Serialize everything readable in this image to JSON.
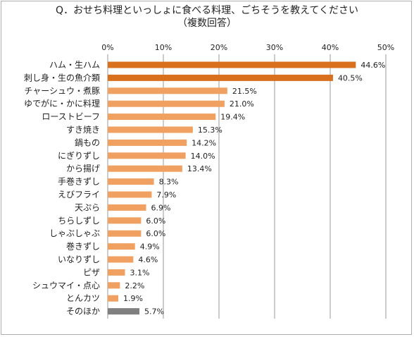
{
  "chart_data": {
    "type": "bar",
    "orientation": "horizontal",
    "title": "Q．おせち料理といっしょに食べる料理、ごちそうを教えてください",
    "subtitle": "（複数回答）",
    "categories": [
      "ハム・生ハム",
      "刺し身・生の魚介類",
      "チャーシュウ・煮豚",
      "ゆでがに・かに料理",
      "ローストビーフ",
      "すき焼き",
      "鍋もの",
      "にぎりずし",
      "から揚げ",
      "手巻きずし",
      "えびフライ",
      "天ぷら",
      "ちらしずし",
      "しゃぶしゃぶ",
      "巻きずし",
      "いなりずし",
      "ピザ",
      "シュウマイ・点心",
      "とんカツ",
      "そのほか"
    ],
    "values": [
      44.6,
      40.5,
      21.5,
      21.0,
      19.4,
      15.3,
      14.2,
      14.0,
      13.4,
      8.3,
      7.9,
      6.9,
      6.0,
      6.0,
      4.9,
      4.6,
      3.1,
      2.2,
      1.9,
      5.7
    ],
    "value_labels": [
      "44.6%",
      "40.5%",
      "21.5%",
      "21.0%",
      "19.4%",
      "15.3%",
      "14.2%",
      "14.0%",
      "13.4%",
      "8.3%",
      "7.9%",
      "6.9%",
      "6.0%",
      "6.0%",
      "4.9%",
      "4.6%",
      "3.1%",
      "2.2%",
      "1.9%",
      "5.7%"
    ],
    "bar_colors": [
      "#d9701e",
      "#d9701e",
      "#f0a060",
      "#f0a060",
      "#f0a060",
      "#f0a060",
      "#f0a060",
      "#f0a060",
      "#f0a060",
      "#f0a060",
      "#f0a060",
      "#f0a060",
      "#f0a060",
      "#f0a060",
      "#f0a060",
      "#f0a060",
      "#f0a060",
      "#f0a060",
      "#f0a060",
      "#808080"
    ],
    "xlim": [
      0,
      50
    ],
    "xticks": [
      "0%",
      "10%",
      "20%",
      "30%",
      "40%",
      "50%"
    ],
    "grid": true,
    "xlabel": "",
    "ylabel": ""
  }
}
